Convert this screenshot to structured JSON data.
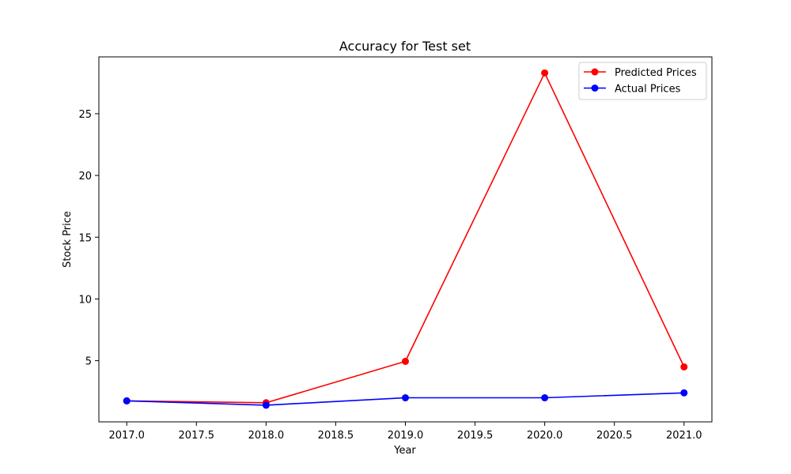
{
  "chart_data": {
    "type": "line",
    "title": "Accuracy for Test set",
    "xlabel": "Year",
    "ylabel": "Stock Price",
    "xlim": [
      2016.8,
      2021.2
    ],
    "ylim": [
      0.05,
      29.6
    ],
    "x_ticks": [
      2017.0,
      2017.5,
      2018.0,
      2018.5,
      2019.0,
      2019.5,
      2020.0,
      2020.5,
      2021.0
    ],
    "x_tick_labels": [
      "2017.0",
      "2017.5",
      "2018.0",
      "2018.5",
      "2019.0",
      "2019.5",
      "2020.0",
      "2020.5",
      "2021.0"
    ],
    "y_ticks": [
      5,
      10,
      15,
      20,
      25
    ],
    "y_tick_labels": [
      "5",
      "10",
      "15",
      "20",
      "25"
    ],
    "grid": false,
    "legend_position": "top-right",
    "series": [
      {
        "name": "Predicted Prices",
        "color": "#ff0000",
        "marker": "circle",
        "x": [
          2017,
          2018,
          2019,
          2020,
          2021
        ],
        "y": [
          1.75,
          1.6,
          4.95,
          28.3,
          4.5
        ]
      },
      {
        "name": "Actual Prices",
        "color": "#0000ff",
        "marker": "circle",
        "x": [
          2017,
          2018,
          2019,
          2020,
          2021
        ],
        "y": [
          1.75,
          1.4,
          2.0,
          2.0,
          2.4
        ]
      }
    ]
  }
}
